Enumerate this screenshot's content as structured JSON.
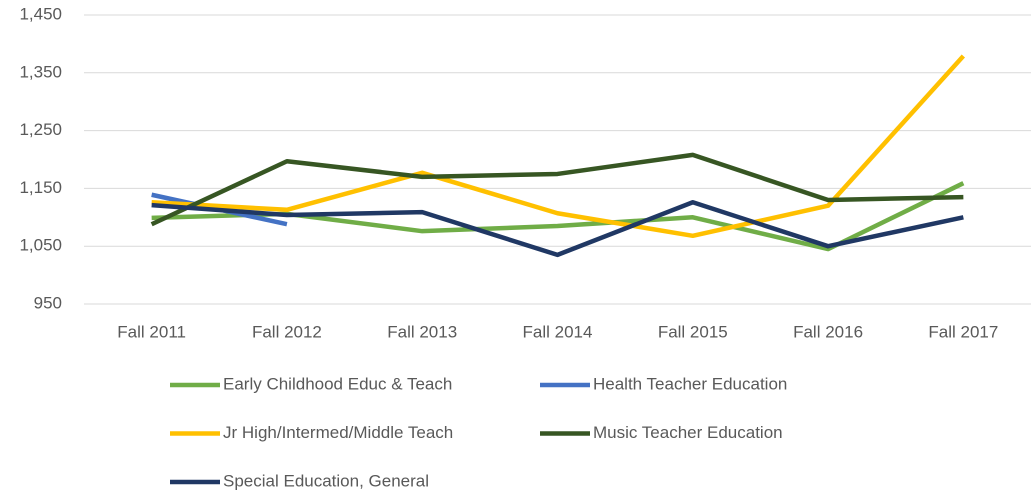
{
  "chart_data": {
    "type": "line",
    "categories": [
      "Fall 2011",
      "Fall 2012",
      "Fall 2013",
      "Fall 2014",
      "Fall 2015",
      "Fall 2016",
      "Fall 2017"
    ],
    "series": [
      {
        "name": "Early Childhood Educ & Teach",
        "color": "#70ad47",
        "values": [
          1099,
          1106,
          1076,
          1085,
          1100,
          1045,
          1159
        ]
      },
      {
        "name": "Health Teacher Education",
        "color": "#4472c4",
        "values": [
          1139,
          1088,
          null,
          null,
          null,
          null,
          null
        ]
      },
      {
        "name": "Jr High/Intermed/Middle Teach",
        "color": "#ffc000",
        "values": [
          1126,
          1113,
          1177,
          1107,
          1068,
          1120,
          1379
        ]
      },
      {
        "name": "Music Teacher Education",
        "color": "#375623",
        "values": [
          1088,
          1197,
          1170,
          1175,
          1208,
          1130,
          1135
        ]
      },
      {
        "name": "Special Education, General",
        "color": "#203864",
        "values": [
          1121,
          1104,
          1109,
          1035,
          1126,
          1050,
          1100
        ]
      }
    ],
    "ylim": [
      950,
      1450
    ],
    "yticks": [
      950,
      {
        "value": 1050,
        "label": "1,050"
      },
      {
        "value": 1150,
        "label": "1,150"
      },
      {
        "value": 1250,
        "label": "1,250"
      },
      {
        "value": 1350,
        "label": "1,350"
      },
      {
        "value": 1450,
        "label": "1,450"
      }
    ],
    "grid": true
  }
}
